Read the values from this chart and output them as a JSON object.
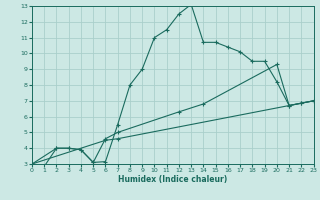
{
  "xlabel": "Humidex (Indice chaleur)",
  "xlim": [
    0,
    23
  ],
  "ylim": [
    3,
    13
  ],
  "xticks": [
    0,
    1,
    2,
    3,
    4,
    5,
    6,
    7,
    8,
    9,
    10,
    11,
    12,
    13,
    14,
    15,
    16,
    17,
    18,
    19,
    20,
    21,
    22,
    23
  ],
  "yticks": [
    3,
    4,
    5,
    6,
    7,
    8,
    9,
    10,
    11,
    12,
    13
  ],
  "bg_color": "#cce8e4",
  "grid_color": "#aacfcb",
  "line_color": "#1a6b5e",
  "line1_x": [
    0,
    1,
    2,
    3,
    4,
    5,
    6,
    7,
    8,
    9,
    10,
    11,
    12,
    13,
    14,
    15,
    16,
    17,
    18,
    19,
    20,
    21,
    22,
    23
  ],
  "line1_y": [
    3.0,
    2.85,
    4.0,
    4.0,
    3.9,
    3.1,
    3.15,
    5.5,
    8.0,
    9.0,
    11.0,
    11.5,
    12.5,
    13.1,
    10.7,
    10.7,
    10.4,
    10.1,
    9.5,
    9.5,
    8.2,
    6.7,
    6.85,
    7.0
  ],
  "line2_x": [
    0,
    2,
    3,
    4,
    5,
    6,
    7,
    12,
    14,
    20,
    21,
    22,
    23
  ],
  "line2_y": [
    3.0,
    4.0,
    4.0,
    3.9,
    3.1,
    4.6,
    5.0,
    6.3,
    6.8,
    9.3,
    6.7,
    6.85,
    7.0
  ],
  "line3_x": [
    0,
    6,
    7,
    23
  ],
  "line3_y": [
    3.0,
    4.5,
    4.6,
    7.0
  ]
}
